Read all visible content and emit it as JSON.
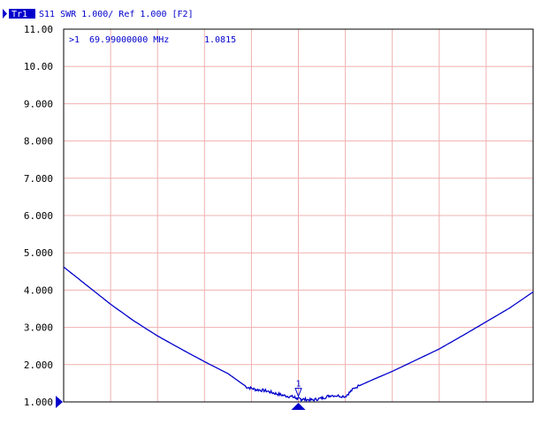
{
  "header": {
    "trace_tag": "Tr1",
    "trace_label": "S11  SWR 1.000/ Ref 1.000 [F2]"
  },
  "marker_readout": {
    "id": ">1",
    "frequency": "69.99000000 MHz",
    "value": "1.0815"
  },
  "marker_flag": "1",
  "colors": {
    "trace": "#0000cc",
    "grid": "#f0b0b0",
    "frame": "#000000",
    "text": "#000000",
    "header_text": "#0000cc",
    "tag_bg": "#0000cc",
    "tag_text": "#ffffff"
  },
  "chart_data": {
    "type": "line",
    "title": "S11  SWR 1.000/ Ref 1.000 [F2]",
    "ylabel": "",
    "xlabel": "",
    "ylim": [
      1.0,
      11.0
    ],
    "xlim": [
      0,
      10
    ],
    "grid": true,
    "y_ticks": [
      "11.00",
      "10.00",
      "9.000",
      "8.000",
      "7.000",
      "6.000",
      "5.000",
      "4.000",
      "3.000",
      "2.000",
      "1.000"
    ],
    "reference_level": 1.0,
    "series": [
      {
        "x": [
          0.0,
          0.5,
          1.0,
          1.5,
          2.0,
          2.5,
          3.0,
          3.5,
          3.9,
          4.1,
          4.3,
          4.5,
          4.7,
          4.9,
          5.0,
          5.1,
          5.3,
          5.5,
          5.7,
          6.0,
          6.2,
          6.5,
          7.0,
          7.5,
          8.0,
          8.5,
          9.0,
          9.5,
          10.0
        ],
        "y": [
          4.62,
          4.12,
          3.62,
          3.17,
          2.77,
          2.42,
          2.08,
          1.76,
          1.4,
          1.33,
          1.3,
          1.23,
          1.17,
          1.13,
          1.08,
          1.07,
          1.05,
          1.1,
          1.18,
          1.15,
          1.38,
          1.55,
          1.82,
          2.12,
          2.42,
          2.78,
          3.15,
          3.52,
          3.95
        ]
      }
    ],
    "markers": [
      {
        "label": "1",
        "x": 5.0,
        "y": 1.08
      }
    ]
  }
}
